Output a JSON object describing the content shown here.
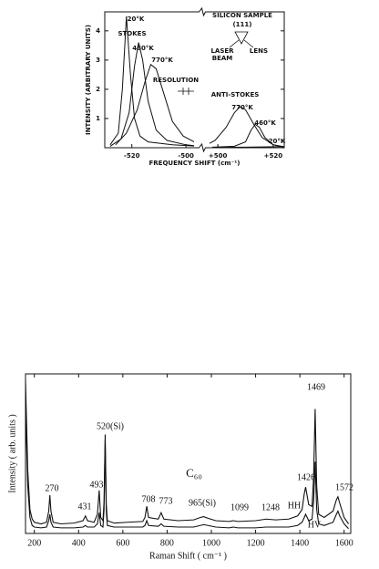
{
  "chart_data": [
    {
      "type": "line",
      "xlabel": "FREQUENCY SHIFT (cm⁻¹)",
      "ylabel": "INTENSITY (ARBITRARY UNITS)",
      "xlim": [
        [
          -530,
          -497
        ],
        [
          497,
          524
        ]
      ],
      "ylim": [
        0,
        4.65
      ],
      "yticks": [
        1,
        2,
        3,
        4
      ],
      "xticks": [
        -520,
        -500,
        {
          "value": 500,
          "label": "+500"
        },
        {
          "value": 520,
          "label": "+520"
        }
      ],
      "axis_break": true,
      "series": [
        {
          "name": "20°K",
          "color": "#111111",
          "x": [
            -528,
            -525,
            -523.5,
            -522,
            -520.5,
            -519,
            -517,
            -514,
            -505,
            -497,
            null,
            498,
            510,
            524
          ],
          "values": [
            0.1,
            0.5,
            2.0,
            4.5,
            2.5,
            1.0,
            0.4,
            0.2,
            0.1,
            0.06,
            null,
            0.01,
            0.02,
            0.04
          ]
        },
        {
          "name": "460°K",
          "color": "#111111",
          "x": [
            -528,
            -524,
            -521,
            -519,
            -517.5,
            -516,
            -514,
            -511,
            -507,
            -500,
            -497,
            null,
            498,
            506,
            510,
            512,
            513.5,
            515,
            517,
            520,
            524
          ],
          "values": [
            0.05,
            0.3,
            1.2,
            2.8,
            3.6,
            3.0,
            1.6,
            0.6,
            0.25,
            0.1,
            0.07,
            null,
            0.02,
            0.05,
            0.2,
            0.6,
            0.8,
            0.7,
            0.35,
            0.1,
            0.02
          ]
        },
        {
          "name": "770°K",
          "color": "#111111",
          "x": [
            -526,
            -522,
            -518,
            -515,
            -513,
            -511,
            -508,
            -505,
            -501,
            -497,
            null,
            497,
            499,
            503,
            506,
            508,
            510,
            513,
            516,
            520,
            524
          ],
          "values": [
            0.1,
            0.5,
            1.3,
            2.3,
            2.85,
            2.7,
            1.8,
            0.9,
            0.4,
            0.2,
            null,
            0.15,
            0.25,
            0.7,
            1.2,
            1.4,
            1.3,
            0.8,
            0.35,
            0.1,
            0.03
          ]
        }
      ],
      "annotations": [
        "STOKES",
        "RESOLUTION",
        "SILICON SAMPLE",
        "(111)",
        "LASER",
        "BEAM",
        "LENS",
        "ANTI-STOKES",
        "770°K",
        "460°K",
        "20°K"
      ]
    },
    {
      "type": "line",
      "xlabel": "Raman Shift ( cm⁻¹ )",
      "ylabel": "Intensity ( arb. units )",
      "xlim": [
        160,
        1630
      ],
      "ylim": [
        0,
        100
      ],
      "xticks": [
        200,
        400,
        600,
        800,
        1000,
        1200,
        1400,
        1600
      ],
      "x": [
        160,
        170,
        180,
        190,
        200,
        230,
        255,
        265,
        270,
        275,
        285,
        320,
        380,
        420,
        431,
        440,
        470,
        485,
        493,
        500,
        510,
        515,
        520,
        525,
        530,
        560,
        620,
        690,
        700,
        708,
        716,
        760,
        773,
        785,
        850,
        920,
        950,
        965,
        985,
        1020,
        1080,
        1099,
        1120,
        1200,
        1248,
        1290,
        1350,
        1390,
        1410,
        1420,
        1426,
        1440,
        1455,
        1462,
        1469,
        1476,
        1485,
        1510,
        1550,
        1565,
        1572,
        1580,
        1600,
        1620
      ],
      "series": [
        {
          "name": "HH",
          "color": "#111111",
          "values": [
            96,
            40,
            15,
            9,
            7,
            6,
            7,
            14,
            24,
            14,
            7,
            6,
            6.5,
            8,
            11,
            8,
            7,
            12,
            27,
            10,
            8,
            20,
            62,
            18,
            8,
            6.5,
            7,
            7.5,
            10,
            17,
            10,
            9,
            13,
            9,
            8,
            8.5,
            10,
            10.5,
            9.5,
            8,
            7.5,
            8,
            7.5,
            8,
            9,
            8.5,
            9,
            11,
            15,
            25,
            29,
            18,
            17,
            35,
            78,
            30,
            12,
            10,
            14,
            21,
            23,
            19,
            10,
            6
          ]
        },
        {
          "name": "HV",
          "color": "#111111",
          "values": [
            80,
            30,
            10,
            5,
            4,
            3.5,
            4,
            8,
            12,
            7,
            4,
            3.5,
            3.5,
            4,
            5,
            4,
            4,
            6,
            13,
            5,
            4,
            15,
            58,
            14,
            5,
            4,
            4,
            4,
            5,
            8,
            5,
            4.5,
            6,
            4.5,
            4,
            4,
            5,
            5.5,
            5,
            4,
            3.5,
            4,
            3.5,
            3.5,
            4,
            4,
            4,
            5,
            7,
            10,
            12,
            8,
            9,
            20,
            45,
            15,
            6,
            5,
            7,
            12,
            14,
            11,
            6,
            3
          ]
        }
      ],
      "annotations": [
        "270",
        "431",
        "493",
        "520(Si)",
        "708",
        "773",
        "965(Si)",
        "1099",
        "1248",
        "1426",
        "1469",
        "1572",
        "C₆₀"
      ]
    }
  ]
}
